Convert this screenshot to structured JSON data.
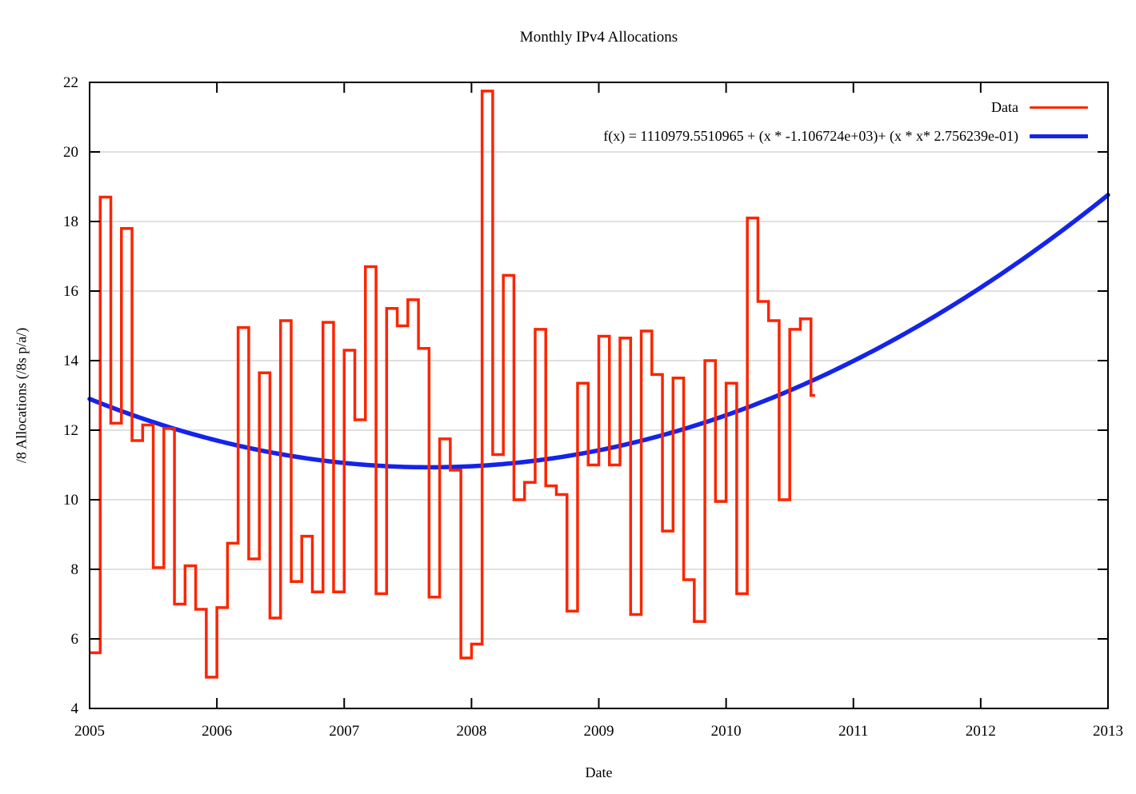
{
  "title": "Monthly IPv4 Allocations",
  "colors": {
    "data_line": "#fb2500",
    "fit_line": "#1424ea",
    "grid": "#d6d6d6",
    "axis": "#000000",
    "background": "#ffffff"
  },
  "legend": {
    "data_label": "Data",
    "fit_label": "f(x) = 1110979.5510965 + (x * -1.106724e+03)+ (x * x* 2.756239e-01)"
  },
  "chart_data": {
    "type": "line",
    "subtype": "steps-with-quadratic-fit",
    "title": "Monthly IPv4 Allocations",
    "xlabel": "Date",
    "ylabel": "/8 Allocations (/8s p/a/)",
    "xlim": [
      2005,
      2013
    ],
    "ylim": [
      4,
      22
    ],
    "x_ticks": [
      "2005",
      "2006",
      "2007",
      "2008",
      "2009",
      "2010",
      "2011",
      "2012",
      "2013"
    ],
    "y_ticks": [
      "4",
      "6",
      "8",
      "10",
      "12",
      "14",
      "16",
      "18",
      "20",
      "22"
    ],
    "grid": "horizontal-only",
    "legend_position": "top-right-inside",
    "series": [
      {
        "name": "Data",
        "style": "steps",
        "color": "#fb2500",
        "line_width": 3.5,
        "x_unit": "month",
        "x_start": "2005-01",
        "x_end": "2010-09",
        "months": [
          "2005-01",
          "2005-02",
          "2005-03",
          "2005-04",
          "2005-05",
          "2005-06",
          "2005-07",
          "2005-08",
          "2005-09",
          "2005-10",
          "2005-11",
          "2005-12",
          "2006-01",
          "2006-02",
          "2006-03",
          "2006-04",
          "2006-05",
          "2006-06",
          "2006-07",
          "2006-08",
          "2006-09",
          "2006-10",
          "2006-11",
          "2006-12",
          "2007-01",
          "2007-02",
          "2007-03",
          "2007-04",
          "2007-05",
          "2007-06",
          "2007-07",
          "2007-08",
          "2007-09",
          "2007-10",
          "2007-11",
          "2007-12",
          "2008-01",
          "2008-02",
          "2008-03",
          "2008-04",
          "2008-05",
          "2008-06",
          "2008-07",
          "2008-08",
          "2008-09",
          "2008-10",
          "2008-11",
          "2008-12",
          "2009-01",
          "2009-02",
          "2009-03",
          "2009-04",
          "2009-05",
          "2009-06",
          "2009-07",
          "2009-08",
          "2009-09",
          "2009-10",
          "2009-11",
          "2009-12",
          "2010-01",
          "2010-02",
          "2010-03",
          "2010-04",
          "2010-05",
          "2010-06",
          "2010-07",
          "2010-08",
          "2010-09"
        ],
        "values": [
          5.6,
          18.7,
          12.2,
          17.8,
          11.7,
          12.15,
          8.05,
          12.05,
          7.0,
          8.1,
          6.85,
          4.9,
          6.9,
          8.75,
          14.95,
          8.3,
          13.65,
          6.6,
          15.15,
          7.65,
          8.95,
          7.35,
          15.1,
          7.35,
          14.3,
          12.3,
          16.7,
          7.3,
          15.5,
          15.0,
          15.75,
          14.35,
          7.2,
          11.75,
          10.85,
          5.45,
          5.85,
          21.75,
          11.3,
          16.45,
          10.0,
          10.5,
          14.9,
          10.4,
          10.15,
          6.8,
          13.35,
          11.0,
          14.7,
          11.0,
          14.65,
          6.7,
          14.85,
          13.6,
          9.1,
          13.5,
          7.7,
          6.5,
          14.0,
          9.95,
          13.35,
          7.3,
          18.1,
          15.7,
          15.15,
          10.0,
          14.9,
          15.2,
          13.0
        ]
      },
      {
        "name": "f(x) = 1110979.5510965 + (x * -1.106724e+03)+ (x * x* 2.756239e-01)",
        "style": "smooth-curve",
        "color": "#1424ea",
        "line_width": 5.5,
        "function": "quadratic",
        "coefficients": {
          "constant": 1110979.5510965,
          "linear": -1106.724,
          "quadratic": 0.2756239
        },
        "domain": [
          2005,
          2013
        ]
      }
    ]
  }
}
